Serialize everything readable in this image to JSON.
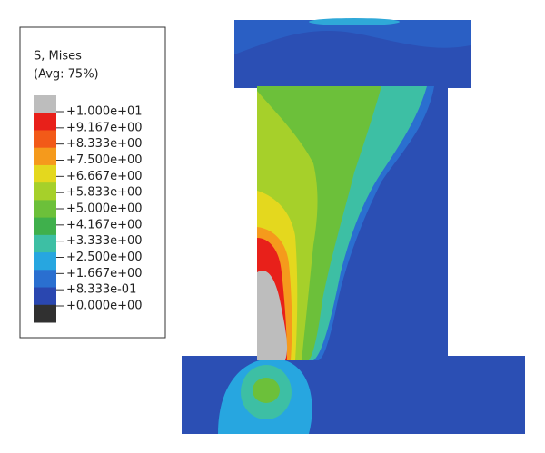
{
  "legend": {
    "title": "S, Mises",
    "subtitle": "(Avg: 75%)",
    "labels": [
      "+1.000e+01",
      "+9.167e+00",
      "+8.333e+00",
      "+7.500e+00",
      "+6.667e+00",
      "+5.833e+00",
      "+5.000e+00",
      "+4.167e+00",
      "+3.333e+00",
      "+2.500e+00",
      "+1.667e+00",
      "+8.333e-01",
      "+0.000e+00"
    ],
    "colors": [
      "#bdbdbd",
      "#e8201a",
      "#f25a18",
      "#f59a1c",
      "#e4d81e",
      "#a6d02a",
      "#6cc03a",
      "#3fb04c",
      "#3dbfa4",
      "#27a6e0",
      "#2a6fd0",
      "#2a47b0",
      "#303030"
    ]
  }
}
